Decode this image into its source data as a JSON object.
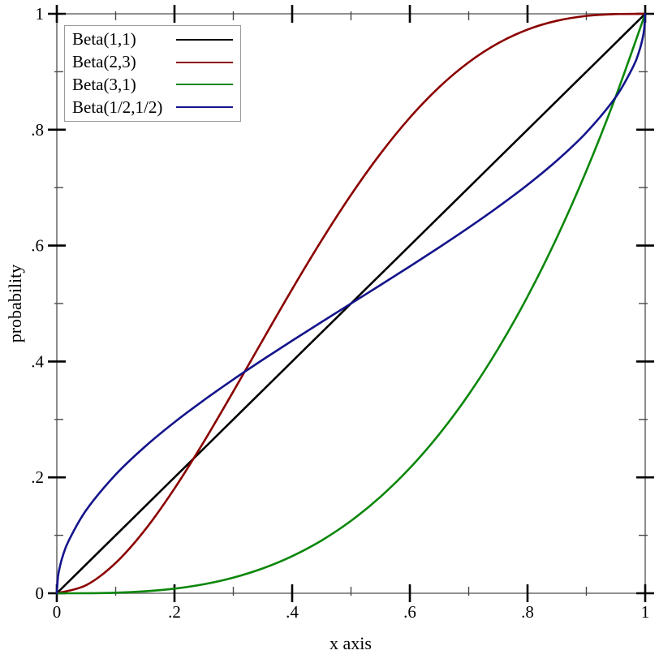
{
  "chart_data": {
    "type": "line",
    "title": "",
    "xlabel": "x axis",
    "ylabel": "probability",
    "xlim": [
      0,
      1
    ],
    "ylim": [
      0,
      1
    ],
    "grid": false,
    "legend_position": "top-left",
    "axes_color": "#808080",
    "major_tick_color": "#000000",
    "minor_tick_color": "#4a4a4a",
    "x_major_ticks": [
      {
        "value": 0,
        "label": "0"
      },
      {
        "value": 0.2,
        "label": ".2"
      },
      {
        "value": 0.4,
        "label": ".4"
      },
      {
        "value": 0.6,
        "label": ".6"
      },
      {
        "value": 0.8,
        "label": ".8"
      },
      {
        "value": 1,
        "label": "1"
      }
    ],
    "x_minor_ticks": [
      0.1,
      0.3,
      0.5,
      0.7,
      0.9
    ],
    "y_major_ticks": [
      {
        "value": 0,
        "label": "0"
      },
      {
        "value": 0.2,
        "label": ".2"
      },
      {
        "value": 0.4,
        "label": ".4"
      },
      {
        "value": 0.6,
        "label": ".6"
      },
      {
        "value": 0.8,
        "label": ".8"
      },
      {
        "value": 1,
        "label": "1"
      }
    ],
    "y_minor_ticks": [
      0.1,
      0.3,
      0.5,
      0.7,
      0.9
    ],
    "series": [
      {
        "name": "Beta(1,1)",
        "color": "#000000",
        "points": [
          [
            0,
            0
          ],
          [
            1,
            1
          ]
        ]
      },
      {
        "name": "Beta(2,3)",
        "color": "#8b0000",
        "points": [
          [
            0,
            0
          ],
          [
            0.05,
            0.014
          ],
          [
            0.1,
            0.0523
          ],
          [
            0.15,
            0.1095
          ],
          [
            0.2,
            0.1808
          ],
          [
            0.25,
            0.2617
          ],
          [
            0.3,
            0.3483
          ],
          [
            0.35,
            0.437
          ],
          [
            0.4,
            0.5248
          ],
          [
            0.45,
            0.609
          ],
          [
            0.5,
            0.6875
          ],
          [
            0.55,
            0.7585
          ],
          [
            0.6,
            0.8208
          ],
          [
            0.65,
            0.8735
          ],
          [
            0.7,
            0.9163
          ],
          [
            0.75,
            0.9492
          ],
          [
            0.8,
            0.9728
          ],
          [
            0.85,
            0.988
          ],
          [
            0.9,
            0.9963
          ],
          [
            0.95,
            0.9995
          ],
          [
            1,
            1
          ]
        ]
      },
      {
        "name": "Beta(3,1)",
        "color": "#0b870b",
        "points": [
          [
            0,
            0
          ],
          [
            0.05,
            0.0001
          ],
          [
            0.1,
            0.001
          ],
          [
            0.15,
            0.0034
          ],
          [
            0.2,
            0.008
          ],
          [
            0.25,
            0.0156
          ],
          [
            0.3,
            0.027
          ],
          [
            0.35,
            0.0429
          ],
          [
            0.4,
            0.064
          ],
          [
            0.45,
            0.0911
          ],
          [
            0.5,
            0.125
          ],
          [
            0.55,
            0.1664
          ],
          [
            0.6,
            0.216
          ],
          [
            0.65,
            0.2746
          ],
          [
            0.7,
            0.343
          ],
          [
            0.75,
            0.4219
          ],
          [
            0.8,
            0.512
          ],
          [
            0.85,
            0.6141
          ],
          [
            0.9,
            0.729
          ],
          [
            0.95,
            0.8574
          ],
          [
            1,
            1
          ]
        ]
      },
      {
        "name": "Beta(1/2,1/2)",
        "color": "#14148c",
        "points": [
          [
            0,
            0
          ],
          [
            0.002,
            0.0285
          ],
          [
            0.005,
            0.045
          ],
          [
            0.01,
            0.0638
          ],
          [
            0.02,
            0.0903
          ],
          [
            0.05,
            0.1436
          ],
          [
            0.1,
            0.2048
          ],
          [
            0.15,
            0.2532
          ],
          [
            0.2,
            0.2952
          ],
          [
            0.25,
            0.3333
          ],
          [
            0.3,
            0.369
          ],
          [
            0.35,
            0.403
          ],
          [
            0.4,
            0.4359
          ],
          [
            0.45,
            0.4681
          ],
          [
            0.5,
            0.5
          ],
          [
            0.55,
            0.5319
          ],
          [
            0.6,
            0.5641
          ],
          [
            0.65,
            0.597
          ],
          [
            0.7,
            0.631
          ],
          [
            0.75,
            0.6667
          ],
          [
            0.8,
            0.7048
          ],
          [
            0.85,
            0.7468
          ],
          [
            0.9,
            0.7952
          ],
          [
            0.95,
            0.8564
          ],
          [
            0.98,
            0.9097
          ],
          [
            0.99,
            0.9362
          ],
          [
            0.995,
            0.955
          ],
          [
            0.998,
            0.9715
          ],
          [
            1,
            1
          ]
        ]
      }
    ]
  }
}
